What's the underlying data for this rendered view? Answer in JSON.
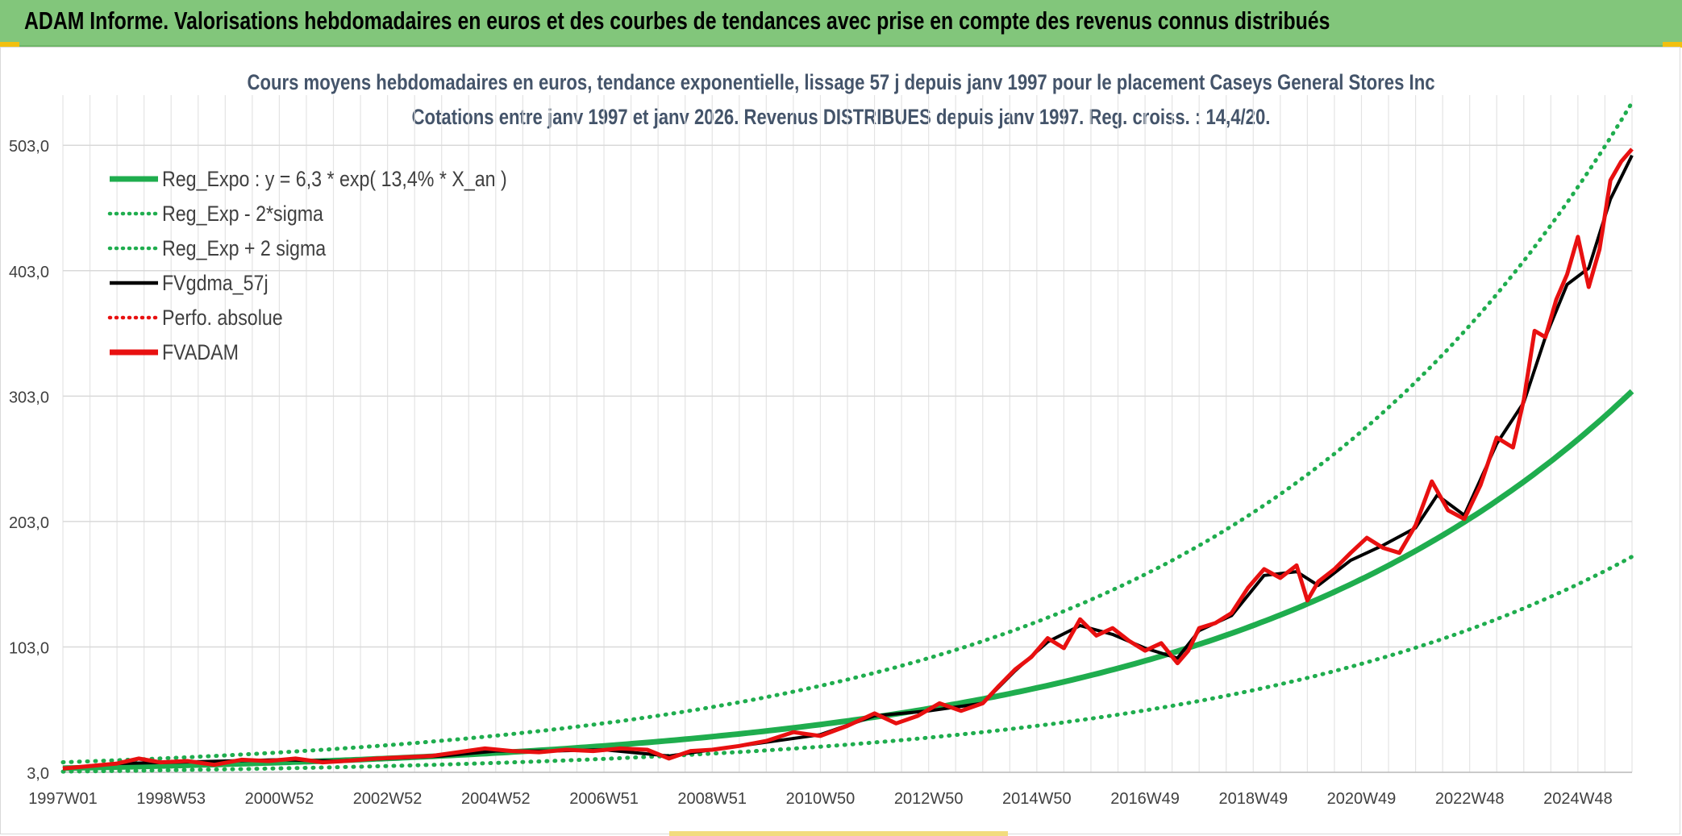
{
  "header": {
    "title": "ADAM Informe. Valorisations hebdomadaires en euros et des courbes de tendances avec prise en compte des revenus connus distribués"
  },
  "colors": {
    "header_bg": "#82c67b",
    "trend_green": "#1fad4e",
    "band_green": "#1fad4e",
    "fv_black": "#000000",
    "adam_red": "#e81010"
  },
  "chart_data": {
    "type": "line",
    "title": "Cours moyens hebdomadaires en euros, tendance exponentielle, lissage 57 j depuis janv 1997 pour le placement Caseys General Stores Inc",
    "subtitle": "Cotations entre janv 1997 et janv 2026. Revenus DISTRIBUES depuis janv 1997. Reg. croiss. : 14,4/20.",
    "ylim": [
      3.0,
      543.0
    ],
    "xlim": [
      1997.0,
      2026.0
    ],
    "yticks": [
      3.0,
      103.0,
      203.0,
      303.0,
      403.0,
      503.0
    ],
    "ytick_labels": [
      "3,0",
      "103,0",
      "203,0",
      "303,0",
      "403,0",
      "503,0"
    ],
    "xticks": [
      1997.0,
      1999.0,
      2001.0,
      2003.0,
      2005.0,
      2007.0,
      2009.0,
      2011.0,
      2013.0,
      2015.0,
      2017.0,
      2019.0,
      2021.0,
      2023.0,
      2025.0
    ],
    "xtick_labels": [
      "1997W01",
      "1998W53",
      "2000W52",
      "2002W52",
      "2004W52",
      "2006W51",
      "2008W51",
      "2010W50",
      "2012W50",
      "2014W50",
      "2016W49",
      "2018W49",
      "2020W49",
      "2022W48",
      "2024W48"
    ],
    "grid": true,
    "legend_position": "top-left",
    "legend": [
      {
        "label": "Reg_Expo : y = 6,3 * exp( 13,4% *  X_an )",
        "style": "solid-thick",
        "color": "#1fad4e"
      },
      {
        "label": "Reg_Exp - 2*sigma",
        "style": "dotted",
        "color": "#1fad4e"
      },
      {
        "label": "Reg_Exp + 2 sigma",
        "style": "dotted",
        "color": "#1fad4e"
      },
      {
        "label": "FVgdma_57j",
        "style": "solid",
        "color": "#000000"
      },
      {
        "label": "Perfo. absolue",
        "style": "dotted",
        "color": "#e81010"
      },
      {
        "label": "FVADAM",
        "style": "solid-thick",
        "color": "#e81010"
      }
    ],
    "regression": {
      "a": 6.3,
      "growth": 0.134,
      "x0": 1997.0,
      "sigma_low_factor": 0.57,
      "sigma_high_factor": 1.75
    },
    "series": [
      {
        "name": "FVADAM",
        "x": [
          1997.0,
          1997.5,
          1998.0,
          1998.4,
          1998.8,
          1999.3,
          1999.8,
          2000.3,
          2000.8,
          2001.3,
          2001.8,
          2002.2,
          2002.8,
          2003.3,
          2003.8,
          2004.3,
          2004.8,
          2005.3,
          2005.8,
          2006.3,
          2006.8,
          2007.3,
          2007.8,
          2008.2,
          2008.6,
          2009.0,
          2009.5,
          2010.0,
          2010.5,
          2011.0,
          2011.5,
          2012.0,
          2012.4,
          2012.8,
          2013.2,
          2013.6,
          2014.0,
          2014.3,
          2014.6,
          2014.9,
          2015.2,
          2015.5,
          2015.8,
          2016.1,
          2016.4,
          2016.7,
          2017.0,
          2017.3,
          2017.6,
          2017.8,
          2018.0,
          2018.3,
          2018.6,
          2018.9,
          2019.2,
          2019.5,
          2019.8,
          2020.0,
          2020.2,
          2020.5,
          2020.8,
          2021.1,
          2021.4,
          2021.7,
          2022.0,
          2022.3,
          2022.6,
          2022.9,
          2023.2,
          2023.5,
          2023.8,
          2024.0,
          2024.2,
          2024.4,
          2024.6,
          2024.8,
          2025.0,
          2025.2,
          2025.4,
          2025.6,
          2025.8,
          2026.0
        ],
        "values": [
          6,
          8,
          10,
          14,
          11,
          12,
          9,
          13,
          12,
          14,
          11,
          12,
          14,
          15,
          16,
          19,
          22,
          20,
          19,
          21,
          20,
          22,
          21,
          14,
          20,
          21,
          24,
          28,
          35,
          32,
          40,
          50,
          42,
          48,
          58,
          52,
          58,
          72,
          85,
          95,
          110,
          102,
          125,
          112,
          118,
          108,
          100,
          106,
          90,
          100,
          118,
          122,
          130,
          150,
          165,
          158,
          168,
          140,
          155,
          165,
          178,
          190,
          182,
          178,
          200,
          235,
          212,
          205,
          232,
          270,
          262,
          300,
          355,
          350,
          380,
          400,
          430,
          390,
          420,
          475,
          490,
          500
        ]
      },
      {
        "name": "FVgdma_57j",
        "x": [
          1997.0,
          1998.0,
          1999.0,
          2000.0,
          2001.0,
          2002.0,
          2003.0,
          2004.0,
          2005.0,
          2006.0,
          2007.0,
          2008.2,
          2009.0,
          2010.0,
          2011.0,
          2012.0,
          2013.0,
          2014.0,
          2014.6,
          2015.2,
          2015.8,
          2016.4,
          2017.0,
          2017.6,
          2018.0,
          2018.6,
          2019.2,
          2019.8,
          2020.2,
          2020.8,
          2021.4,
          2022.0,
          2022.4,
          2022.9,
          2023.5,
          2024.0,
          2024.4,
          2024.8,
          2025.2,
          2025.6,
          2026.0
        ],
        "values": [
          6,
          10,
          11,
          12,
          13,
          12,
          14,
          16,
          20,
          20,
          21,
          16,
          21,
          27,
          33,
          48,
          52,
          58,
          84,
          107,
          120,
          113,
          102,
          94,
          116,
          128,
          160,
          163,
          152,
          172,
          184,
          198,
          224,
          208,
          265,
          298,
          350,
          392,
          405,
          460,
          495
        ]
      }
    ]
  }
}
